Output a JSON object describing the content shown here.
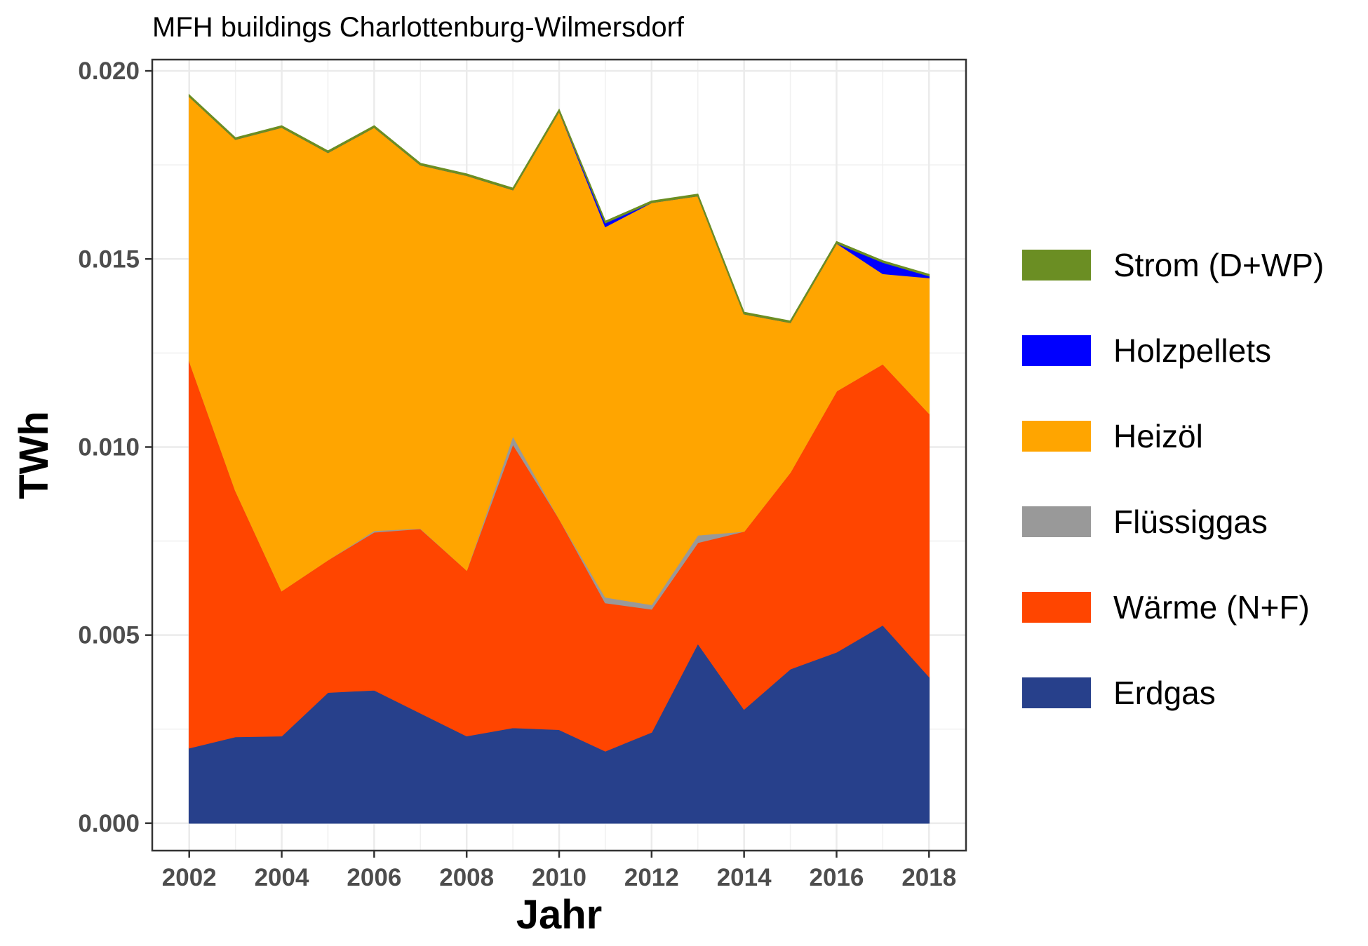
{
  "chart_data": {
    "type": "area",
    "stacked": true,
    "title": "MFH buildings Charlottenburg-Wilmersdorf",
    "xlabel": "Jahr",
    "ylabel": "TWh",
    "x": [
      2002,
      2003,
      2004,
      2005,
      2006,
      2007,
      2008,
      2009,
      2010,
      2011,
      2012,
      2013,
      2014,
      2015,
      2016,
      2017,
      2018
    ],
    "xlim": [
      2001.2,
      2018.8
    ],
    "ylim": [
      -0.00073,
      0.0203
    ],
    "x_ticks": [
      "2002",
      "2004",
      "2006",
      "2008",
      "2010",
      "2012",
      "2014",
      "2016",
      "2018"
    ],
    "y_ticks": [
      "0.000",
      "0.005",
      "0.010",
      "0.015",
      "0.020"
    ],
    "grid": true,
    "legend_position": "right",
    "series": [
      {
        "name": "Erdgas",
        "color": "#27408b",
        "values": [
          0.002,
          0.0023,
          0.00232,
          0.00348,
          0.00354,
          0.00293,
          0.00232,
          0.00254,
          0.00249,
          0.00192,
          0.00242,
          0.00478,
          0.00303,
          0.0041,
          0.00455,
          0.00527,
          0.0039
        ]
      },
      {
        "name": "Wärme (N+F)",
        "color": "#ff4500",
        "values": [
          0.0103,
          0.00655,
          0.00386,
          0.00352,
          0.0042,
          0.0049,
          0.00441,
          0.00754,
          0.00561,
          0.00394,
          0.00327,
          0.00268,
          0.00473,
          0.00523,
          0.00694,
          0.00694,
          0.007
        ]
      },
      {
        "name": "Flüssiggas",
        "color": "#999999",
        "values": [
          0.0,
          0.0,
          0.0,
          0.0,
          4e-05,
          1e-05,
          0.0,
          0.00022,
          0.0,
          0.00015,
          0.00012,
          0.0002,
          0.0,
          0.0,
          0.0,
          0.0,
          0.0
        ]
      },
      {
        "name": "Heizöl",
        "color": "#ffa500",
        "values": [
          0.00702,
          0.00933,
          0.01232,
          0.01083,
          0.01072,
          0.00966,
          0.01049,
          0.00654,
          0.01083,
          0.00985,
          0.01069,
          0.00902,
          0.00578,
          0.00398,
          0.00393,
          0.0024,
          0.0036
        ]
      },
      {
        "name": "Holzpellets",
        "color": "#0000ff",
        "values": [
          0.0,
          0.0,
          0.0,
          0.0,
          0.0,
          0.0,
          0.0,
          0.0,
          0.0,
          0.0001,
          0.0,
          0.0,
          0.0,
          0.0,
          0.0,
          0.0003,
          5e-05
        ]
      },
      {
        "name": "Strom (D+WP)",
        "color": "#6b8e23",
        "values": [
          4e-05,
          4e-05,
          4e-05,
          4e-05,
          4e-05,
          4e-05,
          4e-05,
          4e-05,
          4e-05,
          4e-05,
          4e-05,
          4e-05,
          4e-05,
          4e-05,
          4e-05,
          4e-05,
          4e-05
        ]
      }
    ]
  }
}
